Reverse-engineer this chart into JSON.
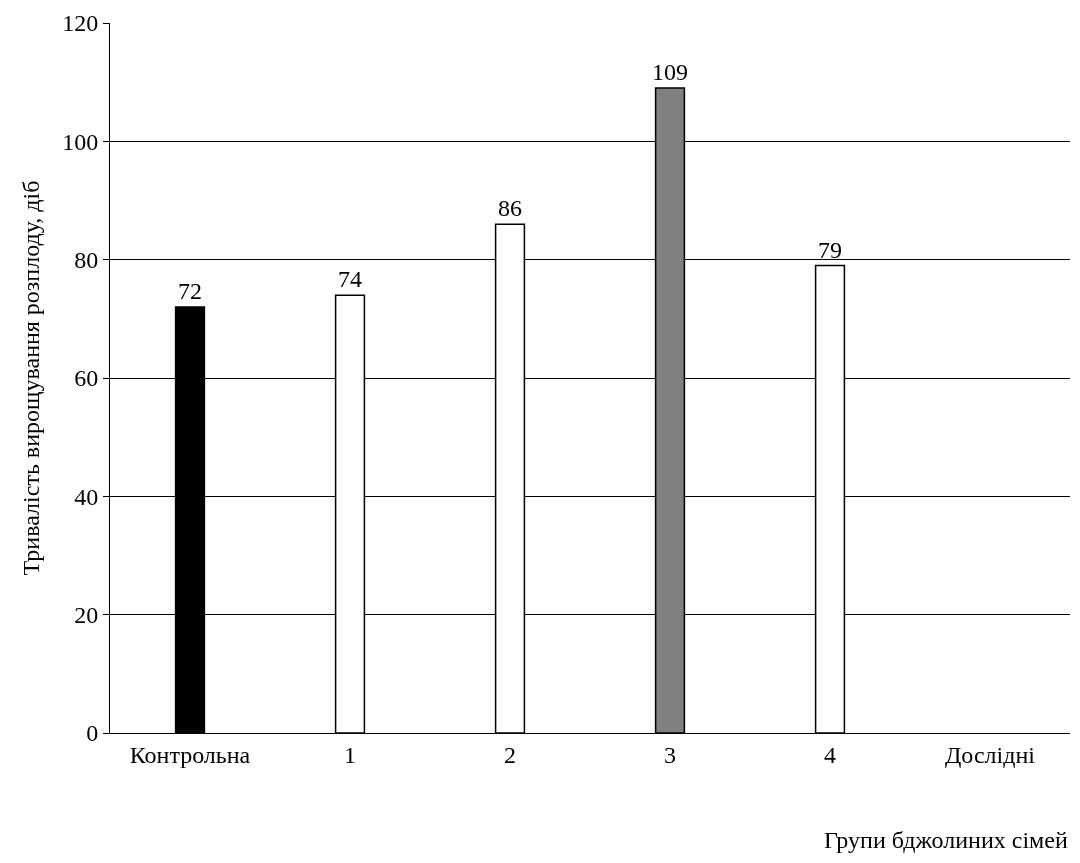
{
  "chart_data": {
    "type": "bar",
    "xlabel": "Групи бджолиних сімей",
    "ylabel": "Тривалість вирощування розплоду, діб",
    "categories": [
      "Контрольна",
      "1",
      "2",
      "3",
      "4",
      "Дослідні"
    ],
    "values": [
      72,
      74,
      86,
      109,
      79,
      null
    ],
    "colors": [
      "#000000",
      "#ffffff",
      "#ffffff",
      "#808080",
      "#ffffff",
      null
    ],
    "ylim": [
      0,
      120
    ],
    "yticks": [
      0,
      20,
      40,
      60,
      80,
      100,
      120
    ],
    "grid": "y",
    "data_labels": true
  }
}
